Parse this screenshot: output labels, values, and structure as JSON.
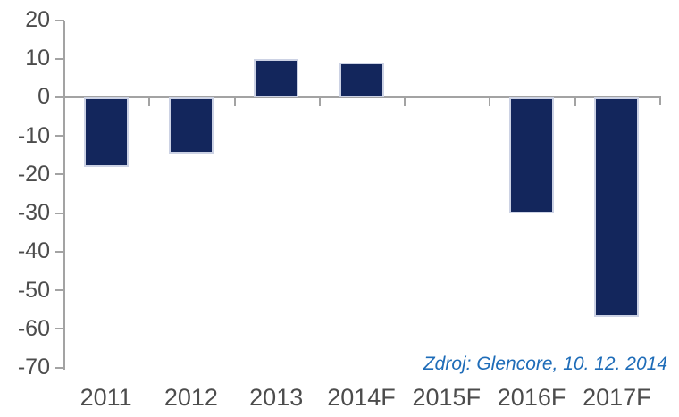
{
  "chart_data": {
    "type": "bar",
    "categories": [
      "2011",
      "2012",
      "2013",
      "2014F",
      "2015F",
      "2016F",
      "2017F"
    ],
    "values": [
      -18,
      -14.5,
      10,
      9,
      0,
      -30,
      -57
    ],
    "title": "",
    "xlabel": "",
    "ylabel": "",
    "ylim": [
      -70,
      20
    ],
    "ytick_step": 10,
    "yticks": [
      20,
      10,
      0,
      -10,
      -20,
      -30,
      -40,
      -50,
      -60,
      -70
    ],
    "grid": false,
    "legend": false,
    "source_note": "Zdroj: Glencore, 10. 12. 2014",
    "colors": {
      "bar_fill": "#13265c",
      "bar_border": "#ccd2e4",
      "axis_line": "#a3a3a3",
      "tick_label": "#4c4c4c",
      "source_note": "#1e6cb8",
      "background": "#ffffff"
    }
  }
}
